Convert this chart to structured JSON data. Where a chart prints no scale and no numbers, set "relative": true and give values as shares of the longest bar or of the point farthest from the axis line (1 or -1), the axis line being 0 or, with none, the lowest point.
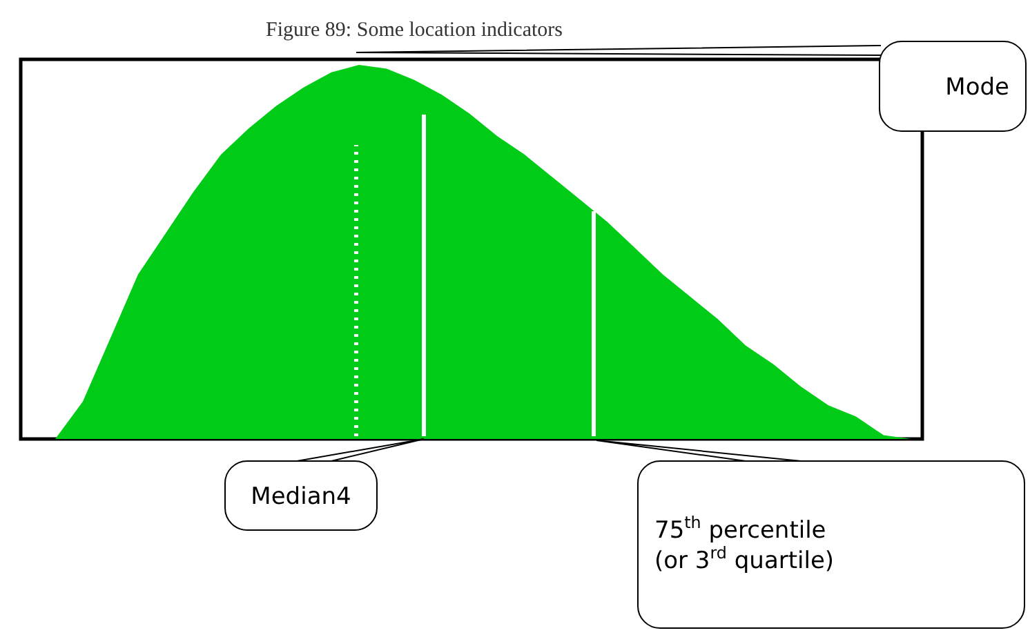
{
  "chart_data": {
    "type": "area",
    "title": "Figure 89:  Some location indicators",
    "relative": true,
    "color": "#00cc17",
    "categories": [
      null,
      null,
      null,
      null,
      null,
      null,
      null,
      null,
      null,
      null,
      null,
      null,
      null,
      null,
      null,
      null,
      null,
      null,
      null,
      null,
      null,
      null,
      null,
      null,
      null,
      null,
      null,
      null,
      null,
      null,
      null,
      null
    ],
    "values": [
      0,
      0.1,
      0.27,
      0.44,
      0.55,
      0.66,
      0.76,
      0.83,
      0.89,
      0.94,
      0.98,
      1.0,
      0.99,
      0.96,
      0.92,
      0.87,
      0.81,
      0.76,
      0.7,
      0.64,
      0.58,
      0.51,
      0.44,
      0.38,
      0.32,
      0.25,
      0.2,
      0.14,
      0.09,
      0.06,
      0.01,
      0
    ],
    "annotations": [
      "Mode",
      "Median4",
      "75$^{th}$ percentile (or 3$^{rd}$ quartile)"
    ]
  }
}
